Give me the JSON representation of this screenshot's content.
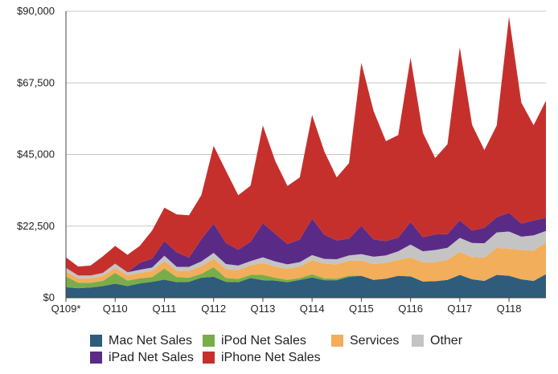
{
  "chart_data": {
    "type": "area",
    "stacked": true,
    "title": "",
    "xlabel": "",
    "ylabel": "",
    "ylim": [
      0,
      90000
    ],
    "yticks": [
      "$0",
      "$22,500",
      "$45,000",
      "$67,500",
      "$90,000"
    ],
    "ytick_values": [
      0,
      22500,
      45000,
      67500,
      90000
    ],
    "xtick_labels": [
      {
        "index": 0,
        "label": "Q109*"
      },
      {
        "index": 4,
        "label": "Q110"
      },
      {
        "index": 8,
        "label": "Q111"
      },
      {
        "index": 12,
        "label": "Q112"
      },
      {
        "index": 16,
        "label": "Q113"
      },
      {
        "index": 20,
        "label": "Q114"
      },
      {
        "index": 24,
        "label": "Q115"
      },
      {
        "index": 28,
        "label": "Q116"
      },
      {
        "index": 32,
        "label": "Q117"
      },
      {
        "index": 36,
        "label": "Q118"
      }
    ],
    "grid": true,
    "legend_position": "bottom",
    "series": [
      {
        "name": "Mac Net Sales",
        "color": "#2f5c7a",
        "values": [
          3300,
          3000,
          3200,
          3700,
          4400,
          3700,
          4500,
          5000,
          5700,
          4900,
          5000,
          6300,
          6600,
          5000,
          4900,
          6200,
          5500,
          5400,
          4900,
          5600,
          6400,
          5500,
          5500,
          6600,
          6900,
          5600,
          6000,
          6900,
          6700,
          5100,
          5200,
          5600,
          7200,
          5800,
          5300,
          7200,
          6900,
          5800,
          5300,
          7400
        ]
      },
      {
        "name": "iPod Net Sales",
        "color": "#78ad4a",
        "values": [
          3400,
          1700,
          1500,
          1600,
          3400,
          1700,
          1600,
          1500,
          3500,
          1600,
          1300,
          1200,
          3000,
          1200,
          1000,
          1000,
          1700,
          900,
          700,
          600,
          1000,
          600,
          500,
          400,
          0,
          0,
          0,
          0,
          0,
          0,
          0,
          0,
          0,
          0,
          0,
          0,
          0,
          0,
          0,
          0
        ]
      },
      {
        "name": "Services",
        "color": "#f2ae5a",
        "values": [
          1500,
          1400,
          1400,
          1500,
          1600,
          1600,
          1700,
          1900,
          2300,
          2000,
          2200,
          2400,
          2700,
          2800,
          2800,
          3000,
          3700,
          3500,
          3500,
          3600,
          4400,
          4600,
          4500,
          4600,
          4800,
          5000,
          5000,
          5000,
          6000,
          6000,
          6000,
          6300,
          7200,
          7000,
          7300,
          8500,
          8500,
          9200,
          9500,
          10000
        ]
      },
      {
        "name": "Other",
        "color": "#c4c4c4",
        "values": [
          1200,
          900,
          900,
          1000,
          1300,
          1000,
          1000,
          1100,
          1700,
          1200,
          1200,
          1500,
          1800,
          1600,
          1400,
          1300,
          1800,
          1600,
          1400,
          1400,
          1600,
          1500,
          1600,
          1700,
          2000,
          2300,
          2300,
          2700,
          4000,
          3500,
          3800,
          3800,
          4400,
          4400,
          4500,
          4800,
          5400,
          4200,
          4800,
          3600
        ]
      },
      {
        "name": "iPad Net Sales",
        "color": "#5a2b86",
        "values": [
          0,
          0,
          0,
          0,
          0,
          0,
          2200,
          2800,
          4600,
          4600,
          2900,
          7000,
          9200,
          6600,
          5000,
          6100,
          10700,
          8700,
          6400,
          7100,
          11500,
          7600,
          5900,
          5300,
          8900,
          5400,
          4500,
          4300,
          7100,
          4400,
          4900,
          4300,
          5500,
          3900,
          4900,
          4800,
          5900,
          4100,
          4700,
          4100
        ]
      },
      {
        "name": "iPhone Net Sales",
        "color": "#c6302c",
        "values": [
          3300,
          2800,
          3100,
          5200,
          5600,
          5500,
          5300,
          8800,
          10500,
          11900,
          13300,
          13800,
          24400,
          22700,
          17100,
          17600,
          30700,
          22900,
          18200,
          19500,
          32500,
          26100,
          19800,
          23700,
          51200,
          40300,
          31400,
          32200,
          51600,
          32800,
          24000,
          28200,
          54400,
          33200,
          24400,
          28800,
          61600,
          38000,
          29900,
          36800
        ]
      }
    ]
  }
}
